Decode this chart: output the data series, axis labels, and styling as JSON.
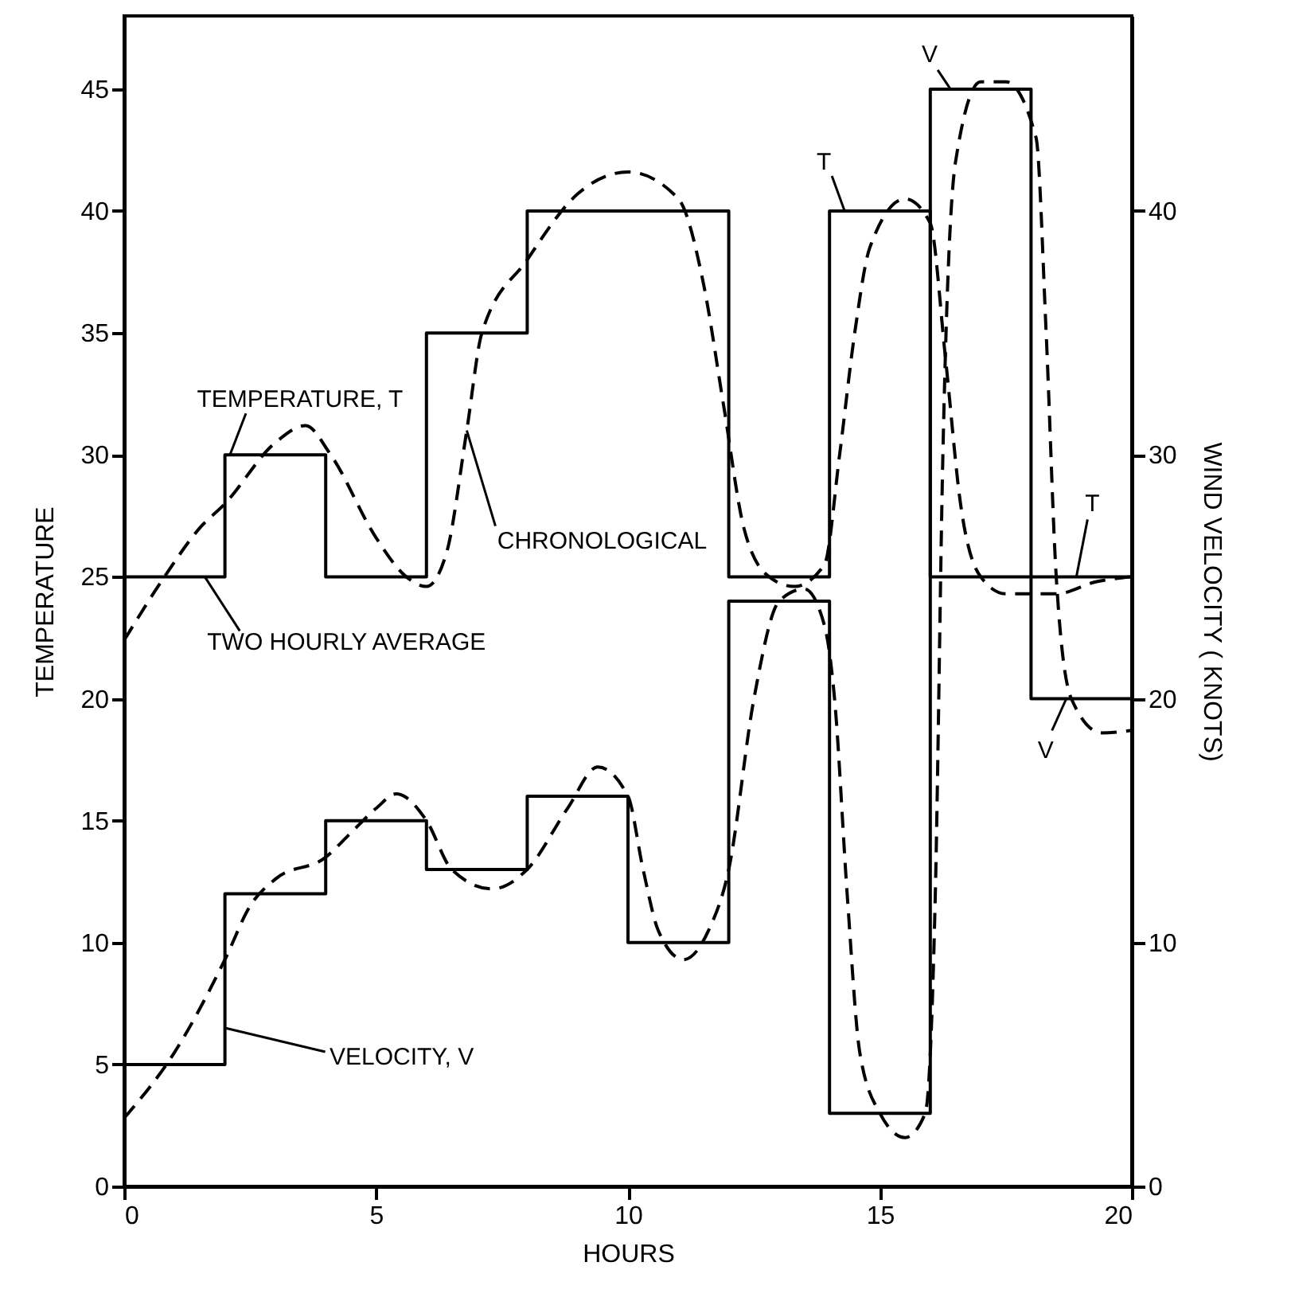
{
  "chart_data": {
    "type": "line",
    "xlabel": "HOURS",
    "ylabel": "TEMPERATURE",
    "y2label": "WIND VELOCITY ( KNOTS)",
    "xlim": [
      0,
      20
    ],
    "xticks": [
      0,
      5,
      10,
      15,
      20
    ],
    "ylim": [
      0,
      48
    ],
    "yticks": [
      0,
      5,
      10,
      15,
      20,
      25,
      30,
      35,
      40,
      45
    ],
    "y2lim": [
      0,
      48
    ],
    "y2ticks": [
      0,
      10,
      20,
      30,
      40
    ],
    "series": [
      {
        "type": "step",
        "color": "#000000",
        "line_style": "solid",
        "x": [
          0,
          2,
          4,
          6,
          8,
          10,
          12,
          14,
          16,
          18,
          20
        ],
        "values": [
          25,
          30,
          25,
          35,
          40,
          40,
          25,
          40,
          25,
          25,
          25
        ]
      },
      {
        "type": "step",
        "axis": "y2",
        "color": "#000000",
        "line_style": "solid",
        "x": [
          0,
          2,
          4,
          6,
          8,
          10,
          12,
          14,
          16,
          18,
          20
        ],
        "values": [
          5,
          12,
          15,
          13,
          16,
          10,
          24,
          3,
          45,
          20,
          20
        ]
      },
      {
        "type": "line",
        "color": "#000000",
        "line_style": "dashed",
        "x": [
          0,
          0.8,
          1.5,
          2,
          3,
          3.6,
          4.1,
          5,
          5.6,
          6,
          6.4,
          6.8,
          7.1,
          8,
          9,
          10,
          11,
          11.5,
          11.9,
          12.3,
          12.8,
          13.3,
          13.9,
          14.2,
          14.5,
          14.8,
          15.5,
          16,
          16.3,
          16.6,
          17,
          17.5,
          18.5,
          19.3,
          20
        ],
        "values": [
          22.4,
          25,
          27,
          28,
          30.5,
          31.2,
          30,
          26.6,
          25,
          24.6,
          26,
          31,
          35,
          38,
          40.7,
          41.6,
          40.5,
          37,
          32,
          27,
          25,
          24.6,
          25.5,
          30,
          35,
          38.5,
          40.5,
          39.5,
          34,
          28,
          25,
          24.3,
          24.3,
          24.8,
          25
        ]
      },
      {
        "type": "line",
        "axis": "y2",
        "color": "#000000",
        "line_style": "dashed",
        "x": [
          0,
          1,
          2,
          2.5,
          3,
          4,
          4.5,
          5,
          5.4,
          6,
          6.5,
          7.3,
          8,
          8.8,
          9.4,
          10,
          10.3,
          10.6,
          11.1,
          11.6,
          12,
          12.5,
          13,
          13.5,
          13.9,
          14.1,
          14.35,
          14.6,
          15,
          15.5,
          15.9,
          16.1,
          16.25,
          16.5,
          17,
          17.5,
          18.1,
          18.3,
          18.5,
          18.8,
          19.4,
          20
        ],
        "values": [
          2.8,
          5.5,
          9.3,
          11.5,
          12.6,
          13.5,
          14.5,
          15.5,
          16.1,
          15,
          13,
          12.2,
          13,
          15.5,
          17.2,
          16,
          13,
          10.5,
          9.3,
          10.5,
          13,
          20,
          24,
          24.5,
          23,
          20,
          12,
          5.5,
          3,
          2,
          3,
          12,
          30,
          42,
          45.3,
          45.3,
          43,
          35,
          25,
          20,
          18.6,
          18.7
        ]
      }
    ],
    "annotations": [
      {
        "text": "TEMPERATURE, T",
        "x": 2.1,
        "y": 30
      },
      {
        "text": "CHRONOLOGICAL",
        "x": 6.8,
        "y": 31
      },
      {
        "text": "TWO HOURLY AVERAGE",
        "x": 1.6,
        "y": 25
      },
      {
        "text": "VELOCITY, V",
        "x": 2,
        "y": 6.5
      },
      {
        "text": "T",
        "x": 14.3,
        "y": 40
      },
      {
        "text": "V",
        "x": 16.4,
        "y": 45
      },
      {
        "text": "T",
        "x": 18.9,
        "y": 25
      },
      {
        "text": "V",
        "x": 18.7,
        "y": 20
      }
    ]
  }
}
